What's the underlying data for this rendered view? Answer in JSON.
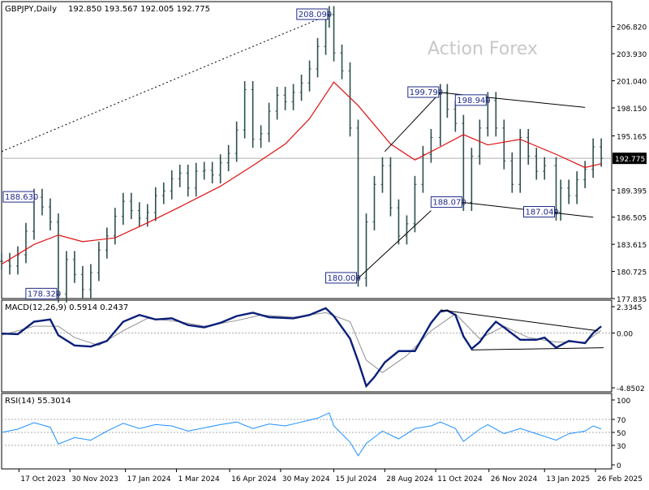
{
  "header": {
    "symbol": "GBPJPY,Daily",
    "ohlc": "192.850 193.567 192.005 192.775",
    "watermark": "Action Forex"
  },
  "chart_data": [
    {
      "type": "line",
      "panel": "price",
      "series_style": "ohlc-bars",
      "ylim": [
        177.835,
        208.09
      ],
      "y_ticks": [
        "206.820",
        "203.930",
        "201.040",
        "198.150",
        "195.165",
        "192.775",
        "189.395",
        "186.505",
        "183.615",
        "180.725",
        "177.835"
      ],
      "current_price": "192.775",
      "x_ticks": [
        "17 Oct 2023",
        "30 Nov 2023",
        "17 Jan 2024",
        "1 Mar 2024",
        "16 Apr 2024",
        "30 May 2024",
        "15 Jul 2024",
        "28 Aug 2024",
        "11 Oct 2024",
        "26 Nov 2024",
        "13 Jan 2025",
        "26 Feb 2025"
      ],
      "annotations": [
        {
          "label": "208.090",
          "date": "2024-07-11",
          "value": 208.09
        },
        {
          "label": "199.790",
          "date": "2024-10-15",
          "value": 199.79
        },
        {
          "label": "198.940",
          "date": "2024-11-25",
          "value": 198.94
        },
        {
          "label": "188.630",
          "date": "2023-10-30",
          "value": 188.63
        },
        {
          "label": "188.070",
          "date": "2024-11-04",
          "value": 188.07
        },
        {
          "label": "187.040",
          "date": "2025-01-23",
          "value": 187.04
        },
        {
          "label": "178.320",
          "date": "2023-11-20",
          "value": 178.32
        },
        {
          "label": "180.000",
          "date": "2024-08-05",
          "value": 180.0
        }
      ],
      "close_points": [
        [
          "2023-10-02",
          181.8
        ],
        [
          "2023-10-09",
          181.3
        ],
        [
          "2023-10-16",
          182.5
        ],
        [
          "2023-10-23",
          185.0
        ],
        [
          "2023-10-30",
          188.63
        ],
        [
          "2023-11-06",
          187.6
        ],
        [
          "2023-11-13",
          186.0
        ],
        [
          "2023-11-20",
          178.32
        ],
        [
          "2023-11-27",
          182.0
        ],
        [
          "2023-12-04",
          180.4
        ],
        [
          "2023-12-11",
          178.8
        ],
        [
          "2023-12-18",
          180.6
        ],
        [
          "2023-12-25",
          183.0
        ],
        [
          "2024-01-01",
          184.5
        ],
        [
          "2024-01-08",
          186.6
        ],
        [
          "2024-01-15",
          188.2
        ],
        [
          "2024-01-22",
          187.2
        ],
        [
          "2024-01-29",
          186.4
        ],
        [
          "2024-02-05",
          187.0
        ],
        [
          "2024-02-12",
          188.8
        ],
        [
          "2024-02-19",
          189.3
        ],
        [
          "2024-02-26",
          190.6
        ],
        [
          "2024-03-04",
          191.2
        ],
        [
          "2024-03-11",
          189.6
        ],
        [
          "2024-03-18",
          191.4
        ],
        [
          "2024-03-25",
          191.5
        ],
        [
          "2024-04-01",
          191.0
        ],
        [
          "2024-04-08",
          192.3
        ],
        [
          "2024-04-15",
          193.3
        ],
        [
          "2024-04-22",
          195.8
        ],
        [
          "2024-04-29",
          200.1
        ],
        [
          "2024-05-06",
          194.8
        ],
        [
          "2024-05-13",
          195.4
        ],
        [
          "2024-05-20",
          197.8
        ],
        [
          "2024-05-27",
          199.5
        ],
        [
          "2024-06-03",
          198.8
        ],
        [
          "2024-06-10",
          199.8
        ],
        [
          "2024-06-17",
          200.8
        ],
        [
          "2024-06-24",
          202.3
        ],
        [
          "2024-07-01",
          204.7
        ],
        [
          "2024-07-08",
          207.6
        ],
        [
          "2024-07-11",
          208.09
        ],
        [
          "2024-07-15",
          204.0
        ],
        [
          "2024-07-22",
          202.1
        ],
        [
          "2024-07-29",
          196.0
        ],
        [
          "2024-08-05",
          180.0
        ],
        [
          "2024-08-12",
          186.0
        ],
        [
          "2024-08-19",
          190.0
        ],
        [
          "2024-08-26",
          192.0
        ],
        [
          "2024-09-02",
          187.5
        ],
        [
          "2024-09-09",
          184.5
        ],
        [
          "2024-09-16",
          185.8
        ],
        [
          "2024-09-23",
          190.0
        ],
        [
          "2024-09-30",
          193.2
        ],
        [
          "2024-10-07",
          195.0
        ],
        [
          "2024-10-15",
          199.79
        ],
        [
          "2024-10-21",
          198.0
        ],
        [
          "2024-10-28",
          196.5
        ],
        [
          "2024-11-04",
          188.07
        ],
        [
          "2024-11-11",
          193.0
        ],
        [
          "2024-11-18",
          196.0
        ],
        [
          "2024-11-25",
          198.94
        ],
        [
          "2024-12-02",
          196.0
        ],
        [
          "2024-12-09",
          192.5
        ],
        [
          "2024-12-16",
          190.0
        ],
        [
          "2024-12-23",
          195.0
        ],
        [
          "2024-12-30",
          193.0
        ],
        [
          "2025-01-06",
          191.4
        ],
        [
          "2025-01-13",
          192.0
        ],
        [
          "2025-01-23",
          187.04
        ],
        [
          "2025-01-27",
          189.6
        ],
        [
          "2025-02-03",
          188.8
        ],
        [
          "2025-02-10",
          190.5
        ],
        [
          "2025-02-17",
          191.6
        ],
        [
          "2025-02-24",
          194.0
        ],
        [
          "2025-03-03",
          192.775
        ]
      ],
      "sma": [
        [
          "2023-10-02",
          181.5
        ],
        [
          "2023-10-30",
          183.6
        ],
        [
          "2023-11-20",
          184.6
        ],
        [
          "2023-12-11",
          183.9
        ],
        [
          "2024-01-08",
          184.3
        ],
        [
          "2024-02-05",
          185.9
        ],
        [
          "2024-03-04",
          187.6
        ],
        [
          "2024-04-08",
          189.8
        ],
        [
          "2024-05-06",
          192.0
        ],
        [
          "2024-06-03",
          194.3
        ],
        [
          "2024-06-24",
          197.0
        ],
        [
          "2024-07-15",
          200.9
        ],
        [
          "2024-08-05",
          198.4
        ],
        [
          "2024-09-02",
          194.3
        ],
        [
          "2024-09-23",
          192.6
        ],
        [
          "2024-10-15",
          194.0
        ],
        [
          "2024-11-04",
          195.3
        ],
        [
          "2024-11-25",
          194.2
        ],
        [
          "2024-12-23",
          194.8
        ],
        [
          "2025-01-23",
          193.2
        ],
        [
          "2025-02-17",
          191.8
        ],
        [
          "2025-03-03",
          192.2
        ]
      ],
      "trendlines": [
        {
          "style": "dotted",
          "from": [
            "2023-10-02",
            193.5
          ],
          "to": [
            "2024-07-11",
            208.09
          ]
        },
        {
          "style": "solid",
          "from": [
            "2024-08-28",
            193.5
          ],
          "to": [
            "2024-10-15",
            199.79
          ]
        },
        {
          "style": "solid",
          "from": [
            "2024-10-15",
            199.79
          ],
          "to": [
            "2025-02-17",
            198.2
          ]
        },
        {
          "style": "solid",
          "from": [
            "2024-08-05",
            180.0
          ],
          "to": [
            "2024-10-07",
            187.2
          ]
        },
        {
          "style": "solid",
          "from": [
            "2024-11-04",
            188.07
          ],
          "to": [
            "2025-02-24",
            186.5
          ]
        }
      ]
    },
    {
      "type": "line",
      "panel": "macd",
      "title": "MACD(12,26,9) 0.5914 0.2437",
      "ylim": [
        -4.8502,
        2.3345
      ],
      "y_ticks": [
        "2.3345",
        "0.00",
        "-4.8502"
      ],
      "series": [
        {
          "name": "MACD",
          "values": [
            [
              "2023-10-02",
              -0.05
            ],
            [
              "2023-10-16",
              -0.1
            ],
            [
              "2023-10-30",
              1.0
            ],
            [
              "2023-11-13",
              1.2
            ],
            [
              "2023-11-20",
              -0.2
            ],
            [
              "2023-12-04",
              -1.1
            ],
            [
              "2023-12-18",
              -1.2
            ],
            [
              "2024-01-01",
              -0.7
            ],
            [
              "2024-01-15",
              1.0
            ],
            [
              "2024-01-29",
              1.6
            ],
            [
              "2024-02-12",
              1.2
            ],
            [
              "2024-02-26",
              1.3
            ],
            [
              "2024-03-11",
              0.7
            ],
            [
              "2024-03-25",
              0.5
            ],
            [
              "2024-04-08",
              0.9
            ],
            [
              "2024-04-22",
              1.5
            ],
            [
              "2024-05-06",
              1.8
            ],
            [
              "2024-05-20",
              1.4
            ],
            [
              "2024-06-10",
              1.3
            ],
            [
              "2024-06-24",
              1.6
            ],
            [
              "2024-07-08",
              2.2
            ],
            [
              "2024-07-15",
              1.5
            ],
            [
              "2024-07-29",
              -0.5
            ],
            [
              "2024-08-05",
              -2.5
            ],
            [
              "2024-08-12",
              -4.7
            ],
            [
              "2024-08-19",
              -3.9
            ],
            [
              "2024-08-28",
              -2.6
            ],
            [
              "2024-09-09",
              -1.6
            ],
            [
              "2024-09-23",
              -1.6
            ],
            [
              "2024-10-07",
              0.9
            ],
            [
              "2024-10-15",
              1.9
            ],
            [
              "2024-10-21",
              2.0
            ],
            [
              "2024-10-28",
              1.6
            ],
            [
              "2024-11-04",
              -0.3
            ],
            [
              "2024-11-11",
              -1.4
            ],
            [
              "2024-11-18",
              -0.8
            ],
            [
              "2024-11-25",
              0.2
            ],
            [
              "2024-12-02",
              1.0
            ],
            [
              "2024-12-09",
              0.5
            ],
            [
              "2024-12-23",
              -0.6
            ],
            [
              "2025-01-06",
              -0.6
            ],
            [
              "2025-01-13",
              -0.4
            ],
            [
              "2025-01-23",
              -1.3
            ],
            [
              "2025-02-03",
              -0.7
            ],
            [
              "2025-02-17",
              -0.9
            ],
            [
              "2025-02-24",
              0.0
            ],
            [
              "2025-03-03",
              0.5914
            ]
          ]
        },
        {
          "name": "Signal",
          "values": [
            [
              "2023-10-02",
              -0.2
            ],
            [
              "2023-10-30",
              0.6
            ],
            [
              "2023-11-20",
              0.6
            ],
            [
              "2023-12-04",
              -0.4
            ],
            [
              "2023-12-25",
              -1.1
            ],
            [
              "2024-01-15",
              0.2
            ],
            [
              "2024-02-05",
              1.3
            ],
            [
              "2024-03-04",
              1.0
            ],
            [
              "2024-03-25",
              0.6
            ],
            [
              "2024-04-22",
              1.1
            ],
            [
              "2024-05-13",
              1.6
            ],
            [
              "2024-06-10",
              1.4
            ],
            [
              "2024-07-08",
              1.8
            ],
            [
              "2024-07-29",
              1.0
            ],
            [
              "2024-08-12",
              -2.4
            ],
            [
              "2024-08-26",
              -3.5
            ],
            [
              "2024-09-16",
              -2.0
            ],
            [
              "2024-10-07",
              0.2
            ],
            [
              "2024-10-28",
              1.7
            ],
            [
              "2024-11-18",
              -0.5
            ],
            [
              "2024-12-09",
              0.6
            ],
            [
              "2024-12-30",
              -0.4
            ],
            [
              "2025-01-23",
              -0.8
            ],
            [
              "2025-02-17",
              -0.8
            ],
            [
              "2025-03-03",
              0.2437
            ]
          ]
        }
      ],
      "trendlines": [
        {
          "style": "solid",
          "from": [
            "2024-10-15",
            2.05
          ],
          "to": [
            "2025-02-28",
            0.2
          ]
        },
        {
          "style": "solid",
          "from": [
            "2024-11-11",
            -1.5
          ],
          "to": [
            "2025-03-05",
            -1.3
          ]
        }
      ]
    },
    {
      "type": "line",
      "panel": "rsi",
      "title": "RSI(14) 55.3014",
      "ylim": [
        0,
        100
      ],
      "y_ticks": [
        "100",
        "70",
        "50",
        "30",
        "0"
      ],
      "series": [
        {
          "name": "RSI",
          "values": [
            [
              "2023-10-02",
              50
            ],
            [
              "2023-10-16",
              55
            ],
            [
              "2023-10-30",
              65
            ],
            [
              "2023-11-13",
              58
            ],
            [
              "2023-11-20",
              32
            ],
            [
              "2023-12-04",
              42
            ],
            [
              "2023-12-18",
              38
            ],
            [
              "2024-01-01",
              52
            ],
            [
              "2024-01-15",
              64
            ],
            [
              "2024-01-29",
              56
            ],
            [
              "2024-02-12",
              62
            ],
            [
              "2024-02-26",
              60
            ],
            [
              "2024-03-11",
              52
            ],
            [
              "2024-03-25",
              57
            ],
            [
              "2024-04-08",
              62
            ],
            [
              "2024-04-22",
              66
            ],
            [
              "2024-05-06",
              56
            ],
            [
              "2024-05-20",
              63
            ],
            [
              "2024-06-03",
              60
            ],
            [
              "2024-06-17",
              66
            ],
            [
              "2024-07-01",
              72
            ],
            [
              "2024-07-11",
              80
            ],
            [
              "2024-07-15",
              60
            ],
            [
              "2024-07-29",
              35
            ],
            [
              "2024-08-05",
              14
            ],
            [
              "2024-08-12",
              33
            ],
            [
              "2024-08-26",
              52
            ],
            [
              "2024-09-09",
              40
            ],
            [
              "2024-09-23",
              56
            ],
            [
              "2024-10-07",
              60
            ],
            [
              "2024-10-15",
              66
            ],
            [
              "2024-10-28",
              56
            ],
            [
              "2024-11-04",
              36
            ],
            [
              "2024-11-18",
              55
            ],
            [
              "2024-11-25",
              62
            ],
            [
              "2024-12-09",
              48
            ],
            [
              "2024-12-23",
              56
            ],
            [
              "2025-01-06",
              48
            ],
            [
              "2025-01-23",
              38
            ],
            [
              "2025-02-03",
              48
            ],
            [
              "2025-02-17",
              52
            ],
            [
              "2025-02-24",
              60
            ],
            [
              "2025-03-03",
              55.3
            ]
          ]
        }
      ],
      "levels": [
        70,
        50,
        30
      ]
    }
  ]
}
